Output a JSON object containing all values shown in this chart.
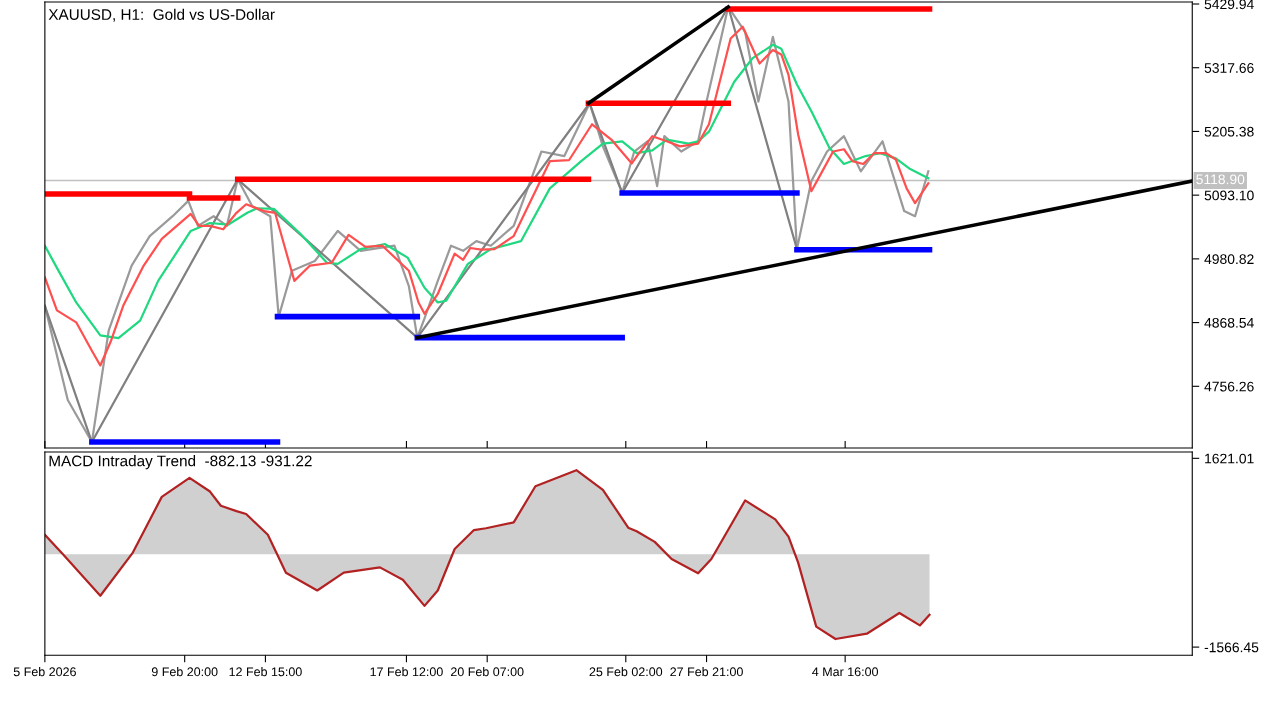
{
  "chart_data": [
    {
      "type": "line",
      "title": "XAUUSD, H1:  Gold vs US-Dollar",
      "xlim": [
        "2026-02-05T00:00",
        "2026-03-16T16:00"
      ],
      "ylim": [
        4647.5,
        5433.4
      ],
      "xticks": [
        {
          "value": "2026-02-05T00:00",
          "label": null
        },
        {
          "value": "2026-02-09T20:00",
          "label": null
        },
        {
          "value": "2026-02-12T15:00",
          "label": null
        },
        {
          "value": "2026-02-17T12:00",
          "label": null
        },
        {
          "value": "2026-02-20T07:00",
          "label": null
        },
        {
          "value": "2026-02-25T02:00",
          "label": null
        },
        {
          "value": "2026-02-27T21:00",
          "label": null
        },
        {
          "value": "2026-03-04T16:00",
          "label": null
        }
      ],
      "yticks": [
        4756.26,
        4868.54,
        4980.82,
        {
          "value": 5093.1,
          "label": "5093.10"
        },
        5205.38,
        5317.66,
        5429.94
      ],
      "tick_labels": "y",
      "grid": false,
      "ref_lines": [
        {
          "axis": "y",
          "value": 5118.9,
          "label": "5118.90",
          "color": "#c0c0c0"
        }
      ],
      "series": [
        {
          "color": "#9a9a9a",
          "x": [
            "2026-02-05T00:00",
            "2026-02-05T19:00",
            "2026-02-06T15:00",
            "2026-02-07T05:00",
            "2026-02-08T00:00",
            "2026-02-08T15:00",
            "2026-02-09T10:00",
            "2026-02-09T23:00",
            "2026-02-10T07:00",
            "2026-02-10T20:00",
            "2026-02-11T07:00",
            "2026-02-11T16:00",
            "2026-02-12T04:00",
            "2026-02-12T19:00",
            "2026-02-13T02:00",
            "2026-02-13T13:00",
            "2026-02-14T08:00",
            "2026-02-15T03:00",
            "2026-02-15T22:00",
            "2026-02-17T02:00",
            "2026-02-17T14:00",
            "2026-02-17T21:00",
            "2026-02-18T03:00",
            "2026-02-18T14:00",
            "2026-02-19T01:00",
            "2026-02-19T11:00",
            "2026-02-19T22:00",
            "2026-02-20T10:00",
            "2026-02-21T05:00",
            "2026-02-22T04:00",
            "2026-02-22T23:00",
            "2026-02-23T20:00",
            "2026-02-24T07:00",
            "2026-02-24T23:00",
            "2026-02-25T09:00",
            "2026-02-25T20:00",
            "2026-02-26T04:00",
            "2026-02-26T10:00",
            "2026-02-27T00:00",
            "2026-02-27T14:00",
            "2026-02-27T21:00",
            "2026-02-28T15:00",
            "2026-03-01T05:00",
            "2026-03-01T16:00",
            "2026-03-02T04:00",
            "2026-03-02T17:00",
            "2026-03-03T00:00",
            "2026-03-03T12:00",
            "2026-03-04T01:00",
            "2026-03-04T15:00",
            "2026-03-05T05:00",
            "2026-03-05T23:00",
            "2026-03-06T17:00",
            "2026-03-07T02:00",
            "2026-03-07T13:00"
          ],
          "values": [
            4898,
            4732,
            4658,
            4855,
            4969,
            5021,
            5056,
            5083,
            5039,
            5056,
            5039,
            5121,
            5074,
            5056,
            4879,
            4960,
            4977,
            5030,
            4995,
            5004,
            4933,
            4842,
            4876,
            4942,
            5004,
            4995,
            5012,
            5004,
            5039,
            5170,
            5162,
            5255,
            5179,
            5097,
            5170,
            5188,
            5109,
            5197,
            5170,
            5188,
            5258,
            5425,
            5381,
            5258,
            5372,
            5258,
            4998,
            5118,
            5170,
            5197,
            5135,
            5188,
            5065,
            5056,
            5135
          ]
        },
        {
          "color": "#808080",
          "x": [
            "2026-02-05T00:00",
            "2026-02-06T15:00",
            "2026-02-11T16:00",
            "2026-02-17T21:00",
            "2026-02-23T20:00",
            "2026-02-24T23:00",
            "2026-02-28T15:00",
            "2026-03-03T00:00"
          ],
          "values": [
            4898,
            4658,
            5121,
            4842,
            5255,
            5097,
            5425,
            4998
          ]
        },
        {
          "color": "#20d880",
          "x": [
            "2026-02-05T00:00",
            "2026-02-05T10:00",
            "2026-02-06T02:00",
            "2026-02-06T22:00",
            "2026-02-07T13:00",
            "2026-02-08T07:00",
            "2026-02-08T22:00",
            "2026-02-10T01:00",
            "2026-02-10T17:00",
            "2026-02-11T08:00",
            "2026-02-12T00:00",
            "2026-02-12T08:00",
            "2026-02-12T22:00",
            "2026-02-13T20:00",
            "2026-02-14T18:00",
            "2026-02-15T03:00",
            "2026-02-15T22:00",
            "2026-02-16T18:00",
            "2026-02-17T13:00",
            "2026-02-18T03:00",
            "2026-02-18T14:00",
            "2026-02-18T21:00",
            "2026-02-19T15:00",
            "2026-02-20T10:00",
            "2026-02-21T11:00",
            "2026-02-22T11:00",
            "2026-02-23T13:00",
            "2026-02-24T07:00",
            "2026-02-24T23:00",
            "2026-02-25T11:00",
            "2026-02-26T00:00",
            "2026-02-26T12:00",
            "2026-02-27T06:00",
            "2026-02-27T14:00",
            "2026-02-27T23:00",
            "2026-02-28T20:00",
            "2026-03-01T11:00",
            "2026-03-02T04:00",
            "2026-03-02T11:00",
            "2026-03-03T00:00",
            "2026-03-03T12:00",
            "2026-03-04T03:00",
            "2026-03-04T15:00",
            "2026-03-05T09:00",
            "2026-03-05T21:00",
            "2026-03-06T10:00",
            "2026-03-06T22:00",
            "2026-03-07T13:00"
          ],
          "values": [
            5004,
            4965,
            4904,
            4846,
            4841,
            4872,
            4942,
            5030,
            5044,
            5041,
            5062,
            5070,
            5069,
            5025,
            4974,
            4972,
            4998,
            5007,
            4983,
            4930,
            4904,
            4907,
            4972,
            4998,
            5012,
            5105,
            5153,
            5184,
            5188,
            5167,
            5172,
            5191,
            5184,
            5188,
            5205,
            5293,
            5334,
            5358,
            5351,
            5288,
            5241,
            5176,
            5148,
            5162,
            5167,
            5158,
            5139,
            5123
          ]
        },
        {
          "color": "#ff5050",
          "x": [
            "2026-02-05T00:00",
            "2026-02-05T10:00",
            "2026-02-06T02:00",
            "2026-02-06T15:00",
            "2026-02-06T22:00",
            "2026-02-07T07:00",
            "2026-02-07T17:00",
            "2026-02-08T10:00",
            "2026-02-09T01:00",
            "2026-02-10T01:00",
            "2026-02-10T08:00",
            "2026-02-10T17:00",
            "2026-02-11T04:00",
            "2026-02-11T15:00",
            "2026-02-11T23:00",
            "2026-02-12T14:00",
            "2026-02-12T23:00",
            "2026-02-13T15:00",
            "2026-02-14T04:00",
            "2026-02-14T22:00",
            "2026-02-15T12:00",
            "2026-02-16T02:00",
            "2026-02-16T16:00",
            "2026-02-17T14:00",
            "2026-02-17T22:00",
            "2026-02-18T03:00",
            "2026-02-18T14:00",
            "2026-02-19T04:00",
            "2026-02-19T11:00",
            "2026-02-19T17:00",
            "2026-02-20T02:00",
            "2026-02-20T13:00",
            "2026-02-21T05:00",
            "2026-02-22T11:00",
            "2026-02-23T03:00",
            "2026-02-23T22:00",
            "2026-02-24T14:00",
            "2026-02-25T07:00",
            "2026-02-25T13:00",
            "2026-02-26T00:00",
            "2026-02-26T12:00",
            "2026-02-26T23:00",
            "2026-02-27T14:00",
            "2026-02-27T23:00",
            "2026-02-28T17:00",
            "2026-03-01T03:00",
            "2026-03-01T17:00",
            "2026-03-02T04:00",
            "2026-03-02T11:00",
            "2026-03-02T17:00",
            "2026-03-03T01:00",
            "2026-03-03T12:00",
            "2026-03-03T21:00",
            "2026-03-04T06:00",
            "2026-03-04T15:00",
            "2026-03-04T22:00",
            "2026-03-05T07:00",
            "2026-03-05T16:00",
            "2026-03-06T02:00",
            "2026-03-06T10:00",
            "2026-03-06T19:00",
            "2026-03-07T02:00",
            "2026-03-07T13:00"
          ],
          "values": [
            4948,
            4890,
            4869,
            4819,
            4793,
            4837,
            4898,
            4969,
            5016,
            5060,
            5039,
            5039,
            5033,
            5062,
            5077,
            5065,
            5062,
            4942,
            4969,
            4974,
            5023,
            5002,
            5004,
            4960,
            4904,
            4884,
            4919,
            4990,
            4979,
            5000,
            4997,
            4998,
            5021,
            5153,
            5155,
            5218,
            5191,
            5149,
            5167,
            5197,
            5188,
            5179,
            5184,
            5218,
            5369,
            5390,
            5325,
            5349,
            5341,
            5305,
            5200,
            5100,
            5135,
            5170,
            5174,
            5153,
            5148,
            5167,
            5167,
            5156,
            5105,
            5079,
            5114
          ]
        },
        {
          "color": "#ff0000",
          "x": [
            "2026-02-05T00:00",
            "2026-02-10T00:00"
          ],
          "values": [
            5095,
            5095
          ]
        },
        {
          "color": "#ff0000",
          "x": [
            "2026-02-10T00:00",
            "2026-02-11T16:00"
          ],
          "values": [
            5088,
            5088
          ]
        },
        {
          "color": "#ff0000",
          "x": [
            "2026-02-11T16:00",
            "2026-02-23T19:00"
          ],
          "values": [
            5121,
            5121
          ]
        },
        {
          "color": "#ff0000",
          "x": [
            "2026-02-23T19:00",
            "2026-02-28T15:00"
          ],
          "values": [
            5255,
            5255
          ]
        },
        {
          "color": "#ff0000",
          "x": [
            "2026-02-28T15:00",
            "2026-03-07T14:00"
          ],
          "values": [
            5421,
            5421
          ]
        },
        {
          "color": "#0000ff",
          "x": [
            "2026-02-06T15:00",
            "2026-02-13T01:00"
          ],
          "values": [
            4658,
            4658
          ]
        },
        {
          "color": "#0000ff",
          "x": [
            "2026-02-13T01:00",
            "2026-02-17T21:00"
          ],
          "values": [
            4879,
            4879
          ]
        },
        {
          "color": "#0000ff",
          "x": [
            "2026-02-17T21:00",
            "2026-02-24T23:00"
          ],
          "values": [
            4842,
            4842
          ]
        },
        {
          "color": "#0000ff",
          "x": [
            "2026-02-24T23:00",
            "2026-03-03T00:00"
          ],
          "values": [
            5097,
            5097
          ]
        },
        {
          "color": "#0000ff",
          "x": [
            "2026-03-03T00:00",
            "2026-03-07T14:00"
          ],
          "values": [
            4997,
            4997
          ]
        },
        {
          "color": "#000000",
          "x": [
            "2026-02-17T21:00",
            "2026-03-16T16:00"
          ],
          "values": [
            4842,
            5118
          ]
        },
        {
          "color": "#000000",
          "x": [
            "2026-02-23T19:00",
            "2026-02-28T15:00"
          ],
          "values": [
            5255,
            5425
          ]
        }
      ]
    },
    {
      "type": "area",
      "title": "MACD Intraday Trend  -882.13 -931.22",
      "xlim": [
        "2026-02-05T00:00",
        "2026-03-16T16:00"
      ],
      "ylim": [
        -1703.1,
        1727.3
      ],
      "xticks": [
        {
          "value": "2026-02-05T00:00",
          "label": "5 Feb 2026"
        },
        {
          "value": "2026-02-09T20:00",
          "label": "9 Feb 20:00"
        },
        {
          "value": "2026-02-12T15:00",
          "label": "12 Feb 15:00"
        },
        {
          "value": "2026-02-17T12:00",
          "label": "17 Feb 12:00"
        },
        {
          "value": "2026-02-20T07:00",
          "label": "20 Feb 07:00"
        },
        {
          "value": "2026-02-25T02:00",
          "label": "25 Feb 02:00"
        },
        {
          "value": "2026-02-27T21:00",
          "label": "27 Feb 21:00"
        },
        {
          "value": "2026-03-04T16:00",
          "label": "4 Mar 16:00"
        }
      ],
      "yticks": [
        -1566.45,
        1621.01
      ],
      "grid": false,
      "series": [
        {
          "color": "#b22222",
          "x": [
            "2026-02-05T00:00",
            "2026-02-05T15:00",
            "2026-02-06T22:00",
            "2026-02-08T01:00",
            "2026-02-09T01:00",
            "2026-02-10T00:00",
            "2026-02-10T17:00",
            "2026-02-11T02:00",
            "2026-02-11T15:00",
            "2026-02-11T23:00",
            "2026-02-12T17:00",
            "2026-02-13T08:00",
            "2026-02-14T10:00",
            "2026-02-15T08:00",
            "2026-02-16T14:00",
            "2026-02-17T09:00",
            "2026-02-18T03:00",
            "2026-02-18T14:00",
            "2026-02-19T04:00",
            "2026-02-19T20:00",
            "2026-02-20T06:00",
            "2026-02-21T05:00",
            "2026-02-21T23:00",
            "2026-02-23T09:00",
            "2026-02-24T07:00",
            "2026-02-25T04:00",
            "2026-02-25T11:00",
            "2026-02-26T02:00",
            "2026-02-26T16:00",
            "2026-02-27T14:00",
            "2026-02-28T01:00",
            "2026-03-01T05:00",
            "2026-03-02T06:00",
            "2026-03-02T17:00",
            "2026-03-03T01:00",
            "2026-03-03T16:00",
            "2026-03-04T08:00",
            "2026-03-05T10:00",
            "2026-03-06T13:00",
            "2026-03-07T06:00",
            "2026-03-07T14:00"
          ],
          "values": [
            330,
            0,
            -700,
            30,
            970,
            1290,
            1060,
            820,
            730,
            680,
            330,
            -310,
            -610,
            -310,
            -220,
            -430,
            -870,
            -610,
            90,
            410,
            440,
            540,
            1150,
            1420,
            1090,
            450,
            390,
            210,
            -80,
            -320,
            -80,
            910,
            590,
            300,
            -140,
            -1220,
            -1430,
            -1340,
            -990,
            -1200,
            -1020
          ]
        }
      ]
    }
  ]
}
